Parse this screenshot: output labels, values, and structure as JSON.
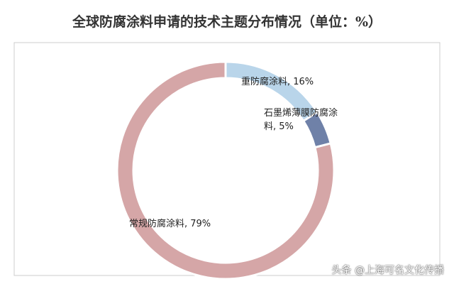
{
  "chart_data": {
    "type": "donut",
    "title": "全球防腐涂料申请的技术主题分布情况（单位：%）",
    "categories": [
      "重防腐涂料",
      "石墨烯薄膜防腐涂料",
      "常规防腐涂料"
    ],
    "values": [
      16,
      5,
      79
    ],
    "value_labels": [
      "重防腐涂料, 16%",
      "石墨烯薄膜防腐涂料, 5%",
      "常规防腐涂料, 79%"
    ],
    "colors": [
      "#b9d5ea",
      "#6f81a8",
      "#d5a6a7"
    ]
  },
  "watermark": "头条 @上海可名文化传播"
}
